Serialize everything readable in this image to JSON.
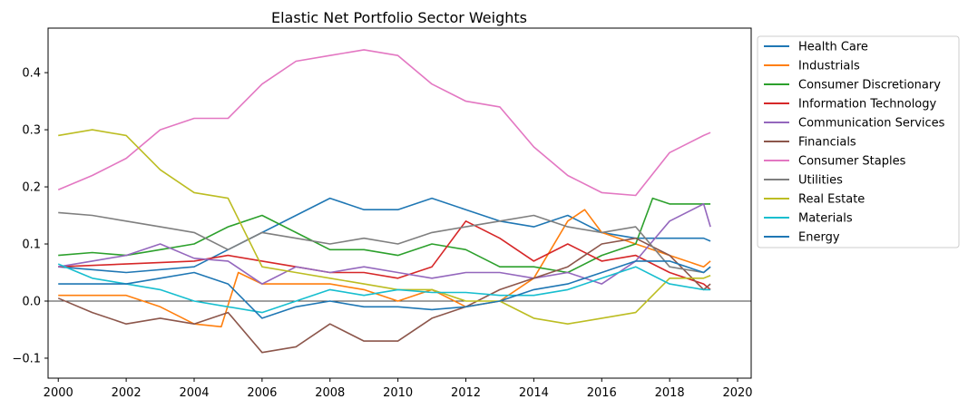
{
  "chart_data": {
    "type": "line",
    "title": "Elastic Net Portfolio Sector Weights",
    "xlabel": "",
    "ylabel": "",
    "xlim": [
      1999.7,
      2020.4
    ],
    "ylim": [
      -0.135,
      0.478
    ],
    "x_ticks": [
      "2000",
      "2002",
      "2004",
      "2006",
      "2008",
      "2010",
      "2012",
      "2014",
      "2016",
      "2018",
      "2020"
    ],
    "y_ticks": [
      "−0.1",
      "0.0",
      "0.1",
      "0.2",
      "0.3",
      "0.4"
    ],
    "zero_line": true,
    "legend_position": "outside-upper-right",
    "grid": false,
    "series": [
      {
        "name": "Health Care",
        "color": "#1f77b4",
        "points": [
          [
            2000,
            0.06
          ],
          [
            2002,
            0.05
          ],
          [
            2004,
            0.06
          ],
          [
            2005,
            0.09
          ],
          [
            2006,
            0.12
          ],
          [
            2007,
            0.15
          ],
          [
            2008,
            0.18
          ],
          [
            2009,
            0.16
          ],
          [
            2010,
            0.16
          ],
          [
            2011,
            0.18
          ],
          [
            2012,
            0.16
          ],
          [
            2013,
            0.14
          ],
          [
            2014,
            0.13
          ],
          [
            2015,
            0.15
          ],
          [
            2016,
            0.12
          ],
          [
            2017,
            0.11
          ],
          [
            2018,
            0.11
          ],
          [
            2019,
            0.11
          ],
          [
            2019.2,
            0.105
          ]
        ]
      },
      {
        "name": "Industrials",
        "color": "#ff7f0e",
        "points": [
          [
            2000,
            0.01
          ],
          [
            2002,
            0.01
          ],
          [
            2003,
            -0.01
          ],
          [
            2004,
            -0.04
          ],
          [
            2004.8,
            -0.045
          ],
          [
            2005.3,
            0.05
          ],
          [
            2006,
            0.03
          ],
          [
            2007,
            0.03
          ],
          [
            2008,
            0.03
          ],
          [
            2009,
            0.02
          ],
          [
            2010,
            0.0
          ],
          [
            2011,
            0.02
          ],
          [
            2012,
            -0.01
          ],
          [
            2013,
            0.0
          ],
          [
            2014,
            0.04
          ],
          [
            2015,
            0.14
          ],
          [
            2015.5,
            0.16
          ],
          [
            2016,
            0.12
          ],
          [
            2017,
            0.1
          ],
          [
            2018,
            0.08
          ],
          [
            2019,
            0.06
          ],
          [
            2019.2,
            0.07
          ]
        ]
      },
      {
        "name": "Consumer Discretionary",
        "color": "#2ca02c",
        "points": [
          [
            2000,
            0.08
          ],
          [
            2001,
            0.085
          ],
          [
            2002,
            0.08
          ],
          [
            2003,
            0.09
          ],
          [
            2004,
            0.1
          ],
          [
            2005,
            0.13
          ],
          [
            2006,
            0.15
          ],
          [
            2007,
            0.12
          ],
          [
            2008,
            0.09
          ],
          [
            2009,
            0.09
          ],
          [
            2010,
            0.08
          ],
          [
            2011,
            0.1
          ],
          [
            2012,
            0.09
          ],
          [
            2013,
            0.06
          ],
          [
            2014,
            0.06
          ],
          [
            2015,
            0.05
          ],
          [
            2016,
            0.08
          ],
          [
            2017,
            0.1
          ],
          [
            2017.5,
            0.18
          ],
          [
            2018,
            0.17
          ],
          [
            2019,
            0.17
          ],
          [
            2019.2,
            0.17
          ]
        ]
      },
      {
        "name": "Information Technology",
        "color": "#d62728",
        "points": [
          [
            2000,
            0.06
          ],
          [
            2002,
            0.065
          ],
          [
            2004,
            0.07
          ],
          [
            2005,
            0.08
          ],
          [
            2006,
            0.07
          ],
          [
            2007,
            0.06
          ],
          [
            2008,
            0.05
          ],
          [
            2009,
            0.05
          ],
          [
            2010,
            0.04
          ],
          [
            2011,
            0.06
          ],
          [
            2012,
            0.14
          ],
          [
            2013,
            0.11
          ],
          [
            2014,
            0.07
          ],
          [
            2015,
            0.1
          ],
          [
            2016,
            0.07
          ],
          [
            2017,
            0.08
          ],
          [
            2018,
            0.05
          ],
          [
            2019,
            0.03
          ],
          [
            2019.2,
            0.02
          ]
        ]
      },
      {
        "name": "Communication Services",
        "color": "#9467bd",
        "points": [
          [
            2000,
            0.06
          ],
          [
            2001,
            0.07
          ],
          [
            2002,
            0.08
          ],
          [
            2003,
            0.1
          ],
          [
            2004,
            0.075
          ],
          [
            2005,
            0.07
          ],
          [
            2006,
            0.03
          ],
          [
            2007,
            0.06
          ],
          [
            2008,
            0.05
          ],
          [
            2009,
            0.06
          ],
          [
            2010,
            0.05
          ],
          [
            2011,
            0.04
          ],
          [
            2012,
            0.05
          ],
          [
            2013,
            0.05
          ],
          [
            2014,
            0.04
          ],
          [
            2015,
            0.05
          ],
          [
            2016,
            0.03
          ],
          [
            2017,
            0.07
          ],
          [
            2018,
            0.14
          ],
          [
            2019,
            0.17
          ],
          [
            2019.2,
            0.13
          ]
        ]
      },
      {
        "name": "Financials",
        "color": "#8c564b",
        "points": [
          [
            2000,
            0.005
          ],
          [
            2001,
            -0.02
          ],
          [
            2002,
            -0.04
          ],
          [
            2003,
            -0.03
          ],
          [
            2004,
            -0.04
          ],
          [
            2005,
            -0.02
          ],
          [
            2006,
            -0.09
          ],
          [
            2007,
            -0.08
          ],
          [
            2008,
            -0.04
          ],
          [
            2009,
            -0.07
          ],
          [
            2010,
            -0.07
          ],
          [
            2011,
            -0.03
          ],
          [
            2012,
            -0.01
          ],
          [
            2013,
            0.02
          ],
          [
            2014,
            0.04
          ],
          [
            2015,
            0.06
          ],
          [
            2016,
            0.1
          ],
          [
            2017,
            0.11
          ],
          [
            2018,
            0.08
          ],
          [
            2019,
            0.02
          ],
          [
            2019.2,
            0.03
          ]
        ]
      },
      {
        "name": "Consumer Staples",
        "color": "#e377c2",
        "points": [
          [
            2000,
            0.195
          ],
          [
            2001,
            0.22
          ],
          [
            2002,
            0.25
          ],
          [
            2003,
            0.3
          ],
          [
            2004,
            0.32
          ],
          [
            2005,
            0.32
          ],
          [
            2006,
            0.38
          ],
          [
            2007,
            0.42
          ],
          [
            2008,
            0.43
          ],
          [
            2009,
            0.44
          ],
          [
            2010,
            0.43
          ],
          [
            2011,
            0.38
          ],
          [
            2012,
            0.35
          ],
          [
            2013,
            0.34
          ],
          [
            2014,
            0.27
          ],
          [
            2015,
            0.22
          ],
          [
            2016,
            0.19
          ],
          [
            2017,
            0.185
          ],
          [
            2018,
            0.26
          ],
          [
            2019,
            0.29
          ],
          [
            2019.2,
            0.295
          ]
        ]
      },
      {
        "name": "Utilities",
        "color": "#7f7f7f",
        "points": [
          [
            2000,
            0.155
          ],
          [
            2001,
            0.15
          ],
          [
            2002,
            0.14
          ],
          [
            2003,
            0.13
          ],
          [
            2004,
            0.12
          ],
          [
            2005,
            0.09
          ],
          [
            2006,
            0.12
          ],
          [
            2007,
            0.11
          ],
          [
            2008,
            0.1
          ],
          [
            2009,
            0.11
          ],
          [
            2010,
            0.1
          ],
          [
            2011,
            0.12
          ],
          [
            2012,
            0.13
          ],
          [
            2013,
            0.14
          ],
          [
            2014,
            0.15
          ],
          [
            2015,
            0.13
          ],
          [
            2016,
            0.12
          ],
          [
            2017,
            0.13
          ],
          [
            2018,
            0.06
          ],
          [
            2019,
            0.05
          ],
          [
            2019.2,
            0.06
          ]
        ]
      },
      {
        "name": "Real Estate",
        "color": "#bcbd22",
        "points": [
          [
            2000,
            0.29
          ],
          [
            2001,
            0.3
          ],
          [
            2002,
            0.29
          ],
          [
            2003,
            0.23
          ],
          [
            2004,
            0.19
          ],
          [
            2005,
            0.18
          ],
          [
            2006,
            0.06
          ],
          [
            2007,
            0.05
          ],
          [
            2008,
            0.04
          ],
          [
            2009,
            0.03
          ],
          [
            2010,
            0.02
          ],
          [
            2011,
            0.02
          ],
          [
            2012,
            0.0
          ],
          [
            2013,
            0.0
          ],
          [
            2014,
            -0.03
          ],
          [
            2015,
            -0.04
          ],
          [
            2016,
            -0.03
          ],
          [
            2017,
            -0.02
          ],
          [
            2018,
            0.04
          ],
          [
            2019,
            0.04
          ],
          [
            2019.2,
            0.045
          ]
        ]
      },
      {
        "name": "Materials",
        "color": "#17becf",
        "points": [
          [
            2000,
            0.065
          ],
          [
            2001,
            0.04
          ],
          [
            2002,
            0.03
          ],
          [
            2003,
            0.02
          ],
          [
            2004,
            0.0
          ],
          [
            2005,
            -0.01
          ],
          [
            2006,
            -0.02
          ],
          [
            2007,
            0.0
          ],
          [
            2008,
            0.02
          ],
          [
            2009,
            0.01
          ],
          [
            2010,
            0.02
          ],
          [
            2011,
            0.015
          ],
          [
            2012,
            0.015
          ],
          [
            2013,
            0.01
          ],
          [
            2014,
            0.01
          ],
          [
            2015,
            0.02
          ],
          [
            2016,
            0.04
          ],
          [
            2017,
            0.06
          ],
          [
            2018,
            0.03
          ],
          [
            2019,
            0.02
          ],
          [
            2019.2,
            0.02
          ]
        ]
      },
      {
        "name": "Energy",
        "color": "#1f77b4",
        "points": [
          [
            2000,
            0.03
          ],
          [
            2001,
            0.03
          ],
          [
            2002,
            0.03
          ],
          [
            2003,
            0.04
          ],
          [
            2004,
            0.05
          ],
          [
            2005,
            0.03
          ],
          [
            2006,
            -0.03
          ],
          [
            2007,
            -0.01
          ],
          [
            2008,
            0.0
          ],
          [
            2009,
            -0.01
          ],
          [
            2010,
            -0.01
          ],
          [
            2011,
            -0.015
          ],
          [
            2012,
            -0.01
          ],
          [
            2013,
            0.0
          ],
          [
            2014,
            0.02
          ],
          [
            2015,
            0.03
          ],
          [
            2016,
            0.05
          ],
          [
            2017,
            0.07
          ],
          [
            2018,
            0.07
          ],
          [
            2019,
            0.05
          ],
          [
            2019.2,
            0.06
          ]
        ]
      }
    ]
  }
}
